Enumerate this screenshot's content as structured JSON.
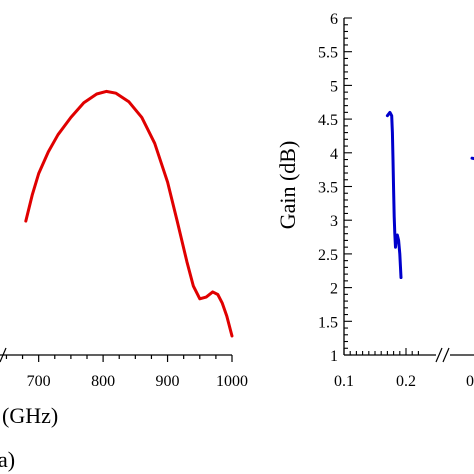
{
  "chart_data": [
    {
      "type": "line",
      "xlabel": "(GHz)",
      "panel_label": "a)",
      "xlim": [
        640,
        1000
      ],
      "x_ticks": [
        "700",
        "800",
        "900",
        "1000"
      ],
      "grid": false,
      "series": [
        {
          "color": "#e00000",
          "x": [
            680,
            690,
            700,
            715,
            730,
            750,
            770,
            790,
            805,
            820,
            840,
            860,
            880,
            900,
            915,
            930,
            940,
            950,
            960,
            970,
            978,
            985,
            992,
            1000
          ],
          "y": [
            2.95,
            3.25,
            3.5,
            3.75,
            3.95,
            4.15,
            4.32,
            4.42,
            4.45,
            4.43,
            4.33,
            4.15,
            3.85,
            3.4,
            2.95,
            2.48,
            2.2,
            2.05,
            2.07,
            2.13,
            2.1,
            2.0,
            1.85,
            1.62
          ]
        }
      ]
    },
    {
      "type": "line",
      "ylabel": "Gain (dB)",
      "ylim": [
        1,
        6
      ],
      "y_ticks": [
        "1",
        "1.5",
        "2",
        "2.5",
        "3",
        "3.5",
        "4",
        "4.5",
        "5",
        "5.5",
        "6"
      ],
      "xlim": [
        0.1,
        0.22
      ],
      "x_ticks": [
        "0.1",
        "0.2"
      ],
      "x_ticks_right_fragment": "0",
      "axis_break": true,
      "grid": false,
      "series": [
        {
          "color": "#0000cc",
          "x": [
            0.17,
            0.174,
            0.177,
            0.178,
            0.179,
            0.18,
            0.181,
            0.182,
            0.183,
            0.184,
            0.186,
            0.188,
            0.19,
            0.192
          ],
          "y": [
            4.55,
            4.6,
            4.55,
            4.3,
            3.9,
            3.45,
            3.05,
            2.8,
            2.6,
            2.7,
            2.78,
            2.7,
            2.5,
            2.15
          ]
        },
        {
          "color": "#0000cc",
          "x": [
            0.216,
            0.218
          ],
          "y": [
            3.92,
            3.91
          ]
        }
      ]
    }
  ]
}
